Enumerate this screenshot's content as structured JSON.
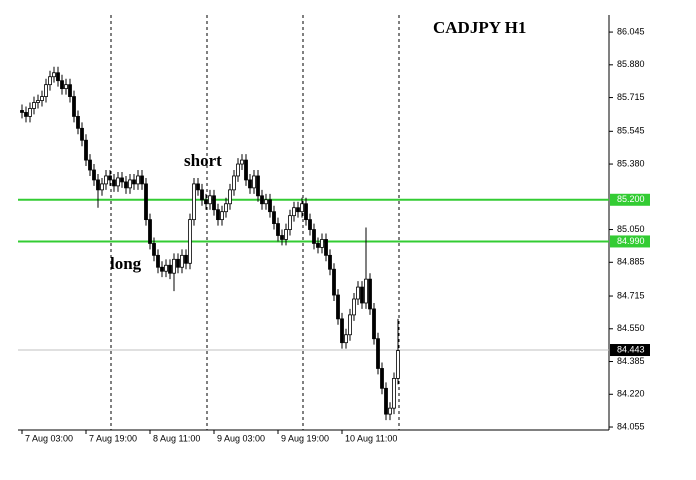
{
  "chart_data": {
    "type": "candlestick",
    "title": "CADJPY H1",
    "annotations": [
      "short",
      "long"
    ],
    "categories": [
      "7 Aug 03:00",
      null,
      null,
      null,
      null,
      null,
      null,
      null,
      null,
      null,
      null,
      null,
      null,
      null,
      null,
      null,
      "7 Aug 19:00",
      null,
      null,
      null,
      null,
      null,
      null,
      null,
      null,
      null,
      null,
      null,
      null,
      null,
      null,
      null,
      "8 Aug 11:00",
      null,
      null,
      null,
      null,
      null,
      null,
      null,
      null,
      null,
      null,
      null,
      null,
      null,
      null,
      null,
      "9 Aug 03:00",
      null,
      null,
      null,
      null,
      null,
      null,
      null,
      null,
      null,
      null,
      null,
      null,
      null,
      null,
      null,
      "9 Aug 19:00",
      null,
      null,
      null,
      null,
      null,
      null,
      null,
      null,
      null,
      null,
      null,
      null,
      null,
      null,
      null,
      "10 Aug 11:00",
      null,
      null,
      null,
      null,
      null,
      null,
      null,
      null,
      null,
      null,
      null,
      null,
      null,
      null
    ],
    "open": [
      85.65,
      85.64,
      85.62,
      85.66,
      85.69,
      85.7,
      85.72,
      85.78,
      85.82,
      85.84,
      85.8,
      85.76,
      85.78,
      85.72,
      85.62,
      85.56,
      85.5,
      85.4,
      85.35,
      85.3,
      85.25,
      85.28,
      85.32,
      85.3,
      85.27,
      85.31,
      85.29,
      85.26,
      85.3,
      85.28,
      85.32,
      85.28,
      85.1,
      84.98,
      84.92,
      84.86,
      84.84,
      84.87,
      84.83,
      84.9,
      84.86,
      84.92,
      84.88,
      85.1,
      85.28,
      85.25,
      85.2,
      85.18,
      85.22,
      85.15,
      85.1,
      85.14,
      85.18,
      85.25,
      85.32,
      85.38,
      85.4,
      85.3,
      85.26,
      85.32,
      85.22,
      85.18,
      85.2,
      85.14,
      85.08,
      85.02,
      85.0,
      85.05,
      85.12,
      85.16,
      85.14,
      85.18,
      85.1,
      85.05,
      84.98,
      84.96,
      85.0,
      84.92,
      84.85,
      84.72,
      84.6,
      84.48,
      84.52,
      84.62,
      84.7,
      84.76,
      84.68,
      84.8,
      84.65,
      84.5,
      84.35,
      84.25,
      84.12,
      84.15,
      84.3
    ],
    "high": [
      85.68,
      85.67,
      85.69,
      85.72,
      85.73,
      85.75,
      85.81,
      85.85,
      85.87,
      85.87,
      85.83,
      85.81,
      85.81,
      85.75,
      85.65,
      85.59,
      85.53,
      85.43,
      85.38,
      85.33,
      85.31,
      85.35,
      85.35,
      85.33,
      85.34,
      85.34,
      85.32,
      85.33,
      85.33,
      85.35,
      85.35,
      85.31,
      85.13,
      85.01,
      84.95,
      84.89,
      84.9,
      84.9,
      84.93,
      84.93,
      84.95,
      84.95,
      85.13,
      85.31,
      85.31,
      85.28,
      85.23,
      85.25,
      85.25,
      85.18,
      85.17,
      85.21,
      85.28,
      85.35,
      85.41,
      85.43,
      85.43,
      85.33,
      85.35,
      85.35,
      85.25,
      85.23,
      85.23,
      85.17,
      85.11,
      85.05,
      85.08,
      85.15,
      85.19,
      85.19,
      85.21,
      85.21,
      85.13,
      85.08,
      85.01,
      85.03,
      85.03,
      84.95,
      84.88,
      84.75,
      84.63,
      84.55,
      84.65,
      84.73,
      84.79,
      84.79,
      85.06,
      84.83,
      84.68,
      84.53,
      84.38,
      84.28,
      84.18,
      84.33,
      84.6
    ],
    "low": [
      85.61,
      85.59,
      85.59,
      85.63,
      85.66,
      85.67,
      85.69,
      85.75,
      85.79,
      85.77,
      85.73,
      85.73,
      85.69,
      85.59,
      85.53,
      85.47,
      85.37,
      85.32,
      85.27,
      85.16,
      85.22,
      85.25,
      85.27,
      85.24,
      85.24,
      85.26,
      85.23,
      85.23,
      85.25,
      85.25,
      85.25,
      85.07,
      84.95,
      84.89,
      84.83,
      84.81,
      84.81,
      84.8,
      84.74,
      84.83,
      84.83,
      84.85,
      84.85,
      85.07,
      85.22,
      85.17,
      85.15,
      85.15,
      85.12,
      85.07,
      85.07,
      85.11,
      85.15,
      85.22,
      85.29,
      85.35,
      85.27,
      85.23,
      85.23,
      85.19,
      85.15,
      85.15,
      85.11,
      85.05,
      84.99,
      84.97,
      84.97,
      85.02,
      85.09,
      85.11,
      85.11,
      85.07,
      85.02,
      84.95,
      84.93,
      84.93,
      84.89,
      84.82,
      84.69,
      84.57,
      84.45,
      84.45,
      84.49,
      84.59,
      84.67,
      84.65,
      84.65,
      84.62,
      84.47,
      84.32,
      84.22,
      84.09,
      84.09,
      84.12,
      84.27
    ],
    "close": [
      85.64,
      85.62,
      85.66,
      85.69,
      85.7,
      85.72,
      85.78,
      85.82,
      85.84,
      85.8,
      85.76,
      85.78,
      85.72,
      85.62,
      85.56,
      85.5,
      85.4,
      85.35,
      85.3,
      85.25,
      85.28,
      85.32,
      85.3,
      85.27,
      85.31,
      85.29,
      85.26,
      85.3,
      85.28,
      85.32,
      85.28,
      85.1,
      84.98,
      84.92,
      84.86,
      84.84,
      84.87,
      84.83,
      84.9,
      84.86,
      84.92,
      84.88,
      85.1,
      85.28,
      85.25,
      85.2,
      85.18,
      85.22,
      85.15,
      85.1,
      85.14,
      85.18,
      85.25,
      85.32,
      85.38,
      85.4,
      85.3,
      85.26,
      85.32,
      85.22,
      85.18,
      85.2,
      85.14,
      85.08,
      85.02,
      85.0,
      85.05,
      85.12,
      85.16,
      85.14,
      85.18,
      85.1,
      85.05,
      84.98,
      84.96,
      85.0,
      84.92,
      84.85,
      84.72,
      84.6,
      84.48,
      84.52,
      84.62,
      84.7,
      84.76,
      84.68,
      84.8,
      84.65,
      84.5,
      84.35,
      84.25,
      84.12,
      84.15,
      84.3,
      84.44
    ],
    "levels": [
      {
        "value": 85.2,
        "label": "85.200",
        "color": "#33cc33"
      },
      {
        "value": 84.99,
        "label": "84.990",
        "color": "#33cc33"
      }
    ],
    "current_price": 84.443,
    "ylim": [
      84.04,
      86.131
    ],
    "yticks": [
      86.045,
      {
        "value": 85.88,
        "label": "85.880"
      },
      85.715,
      85.545,
      {
        "value": 85.38,
        "label": "85.380"
      },
      {
        "value": 85.05,
        "label": "85.050"
      },
      84.885,
      84.715,
      {
        "value": 84.55,
        "label": "84.550"
      },
      84.385,
      {
        "value": 84.22,
        "label": "84.220"
      },
      84.055
    ]
  }
}
